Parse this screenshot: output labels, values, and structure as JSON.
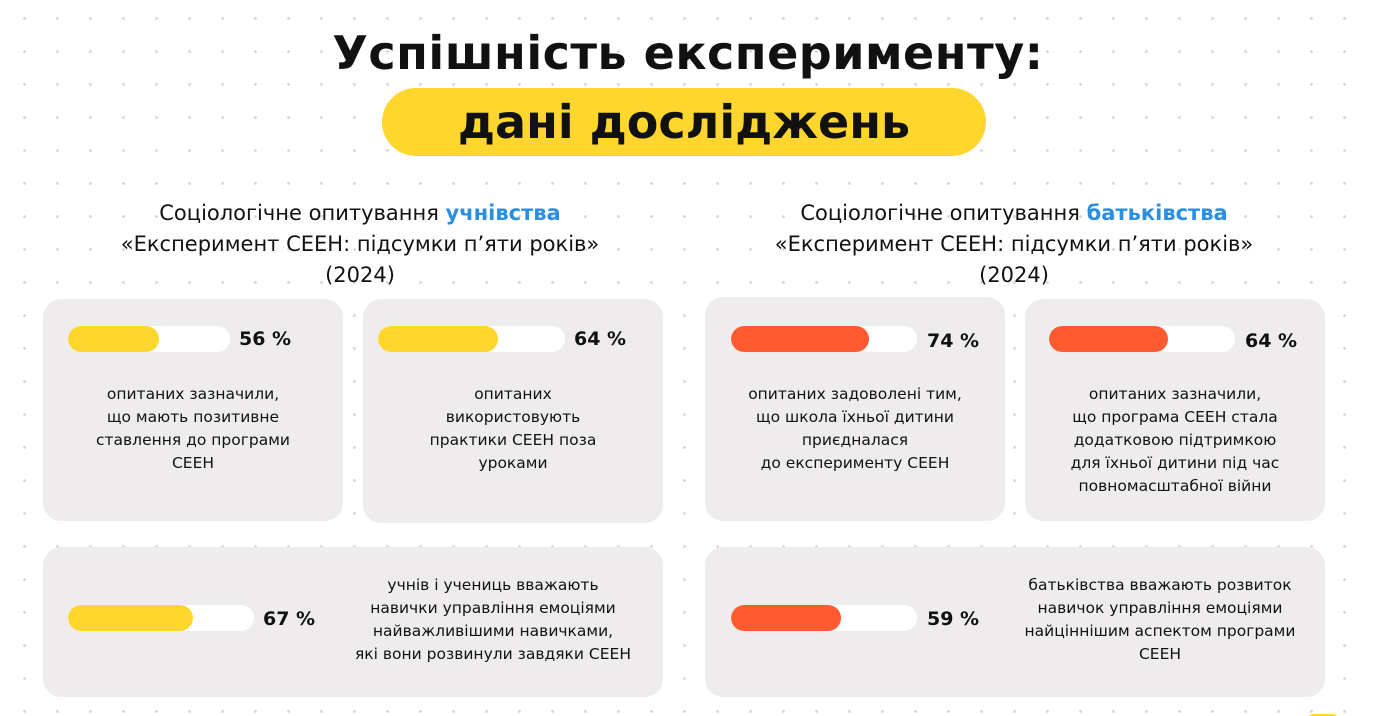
{
  "header": {
    "title": "Успішність експерименту:",
    "subtitle": "дані досліджень"
  },
  "colors": {
    "yellow": "#FFD62E",
    "orange": "#FF5A30",
    "accent_blue": "#2A8FE0",
    "card_bg": "#EFECED"
  },
  "sections": [
    {
      "heading_prefix": "Соціологічне опитування ",
      "heading_accent": "учнівства",
      "line2": "«Експеримент СЕЕН: підсумки п’яти років»",
      "line3": "(2024)"
    },
    {
      "heading_prefix": "Соціологічне опитування ",
      "heading_accent": "батьківства",
      "line2": "«Експеримент СЕЕН: підсумки п’яти років»",
      "line3": "(2024)"
    }
  ],
  "stats": [
    {
      "value": 56,
      "label": "56 %",
      "color": "yellow",
      "text": "опитаних зазначили,\nщо мають позитивне\nставлення до програми\nСЕЕН"
    },
    {
      "value": 64,
      "label": "64 %",
      "color": "yellow",
      "text": "опитаних\nвикористовують\nпрактики СЕЕН поза\nуроками"
    },
    {
      "value": 74,
      "label": "74 %",
      "color": "orange",
      "text": "опитаних задоволені тим,\nщо школа їхньої дитини\nприєдналася\nдо експерименту СЕЕН"
    },
    {
      "value": 64,
      "label": "64 %",
      "color": "orange",
      "text": "опитаних зазначили,\nщо програма СЕЕН стала\nдодатковою підтримкою\nдля їхньої дитини під час\nповномасштабної війни"
    },
    {
      "value": 67,
      "label": "67 %",
      "color": "yellow",
      "text": "учнів і учениць вважають\nнавички управління емоціями\nнайважливішими навичками,\nякі вони розвинули завдяки СЕЕН"
    },
    {
      "value": 59,
      "label": "59 %",
      "color": "orange",
      "text": "батьківства вважають розвиток\nнавичок управління емоціями\nнайціннішим аспектом програми\nСЕЕН"
    }
  ]
}
